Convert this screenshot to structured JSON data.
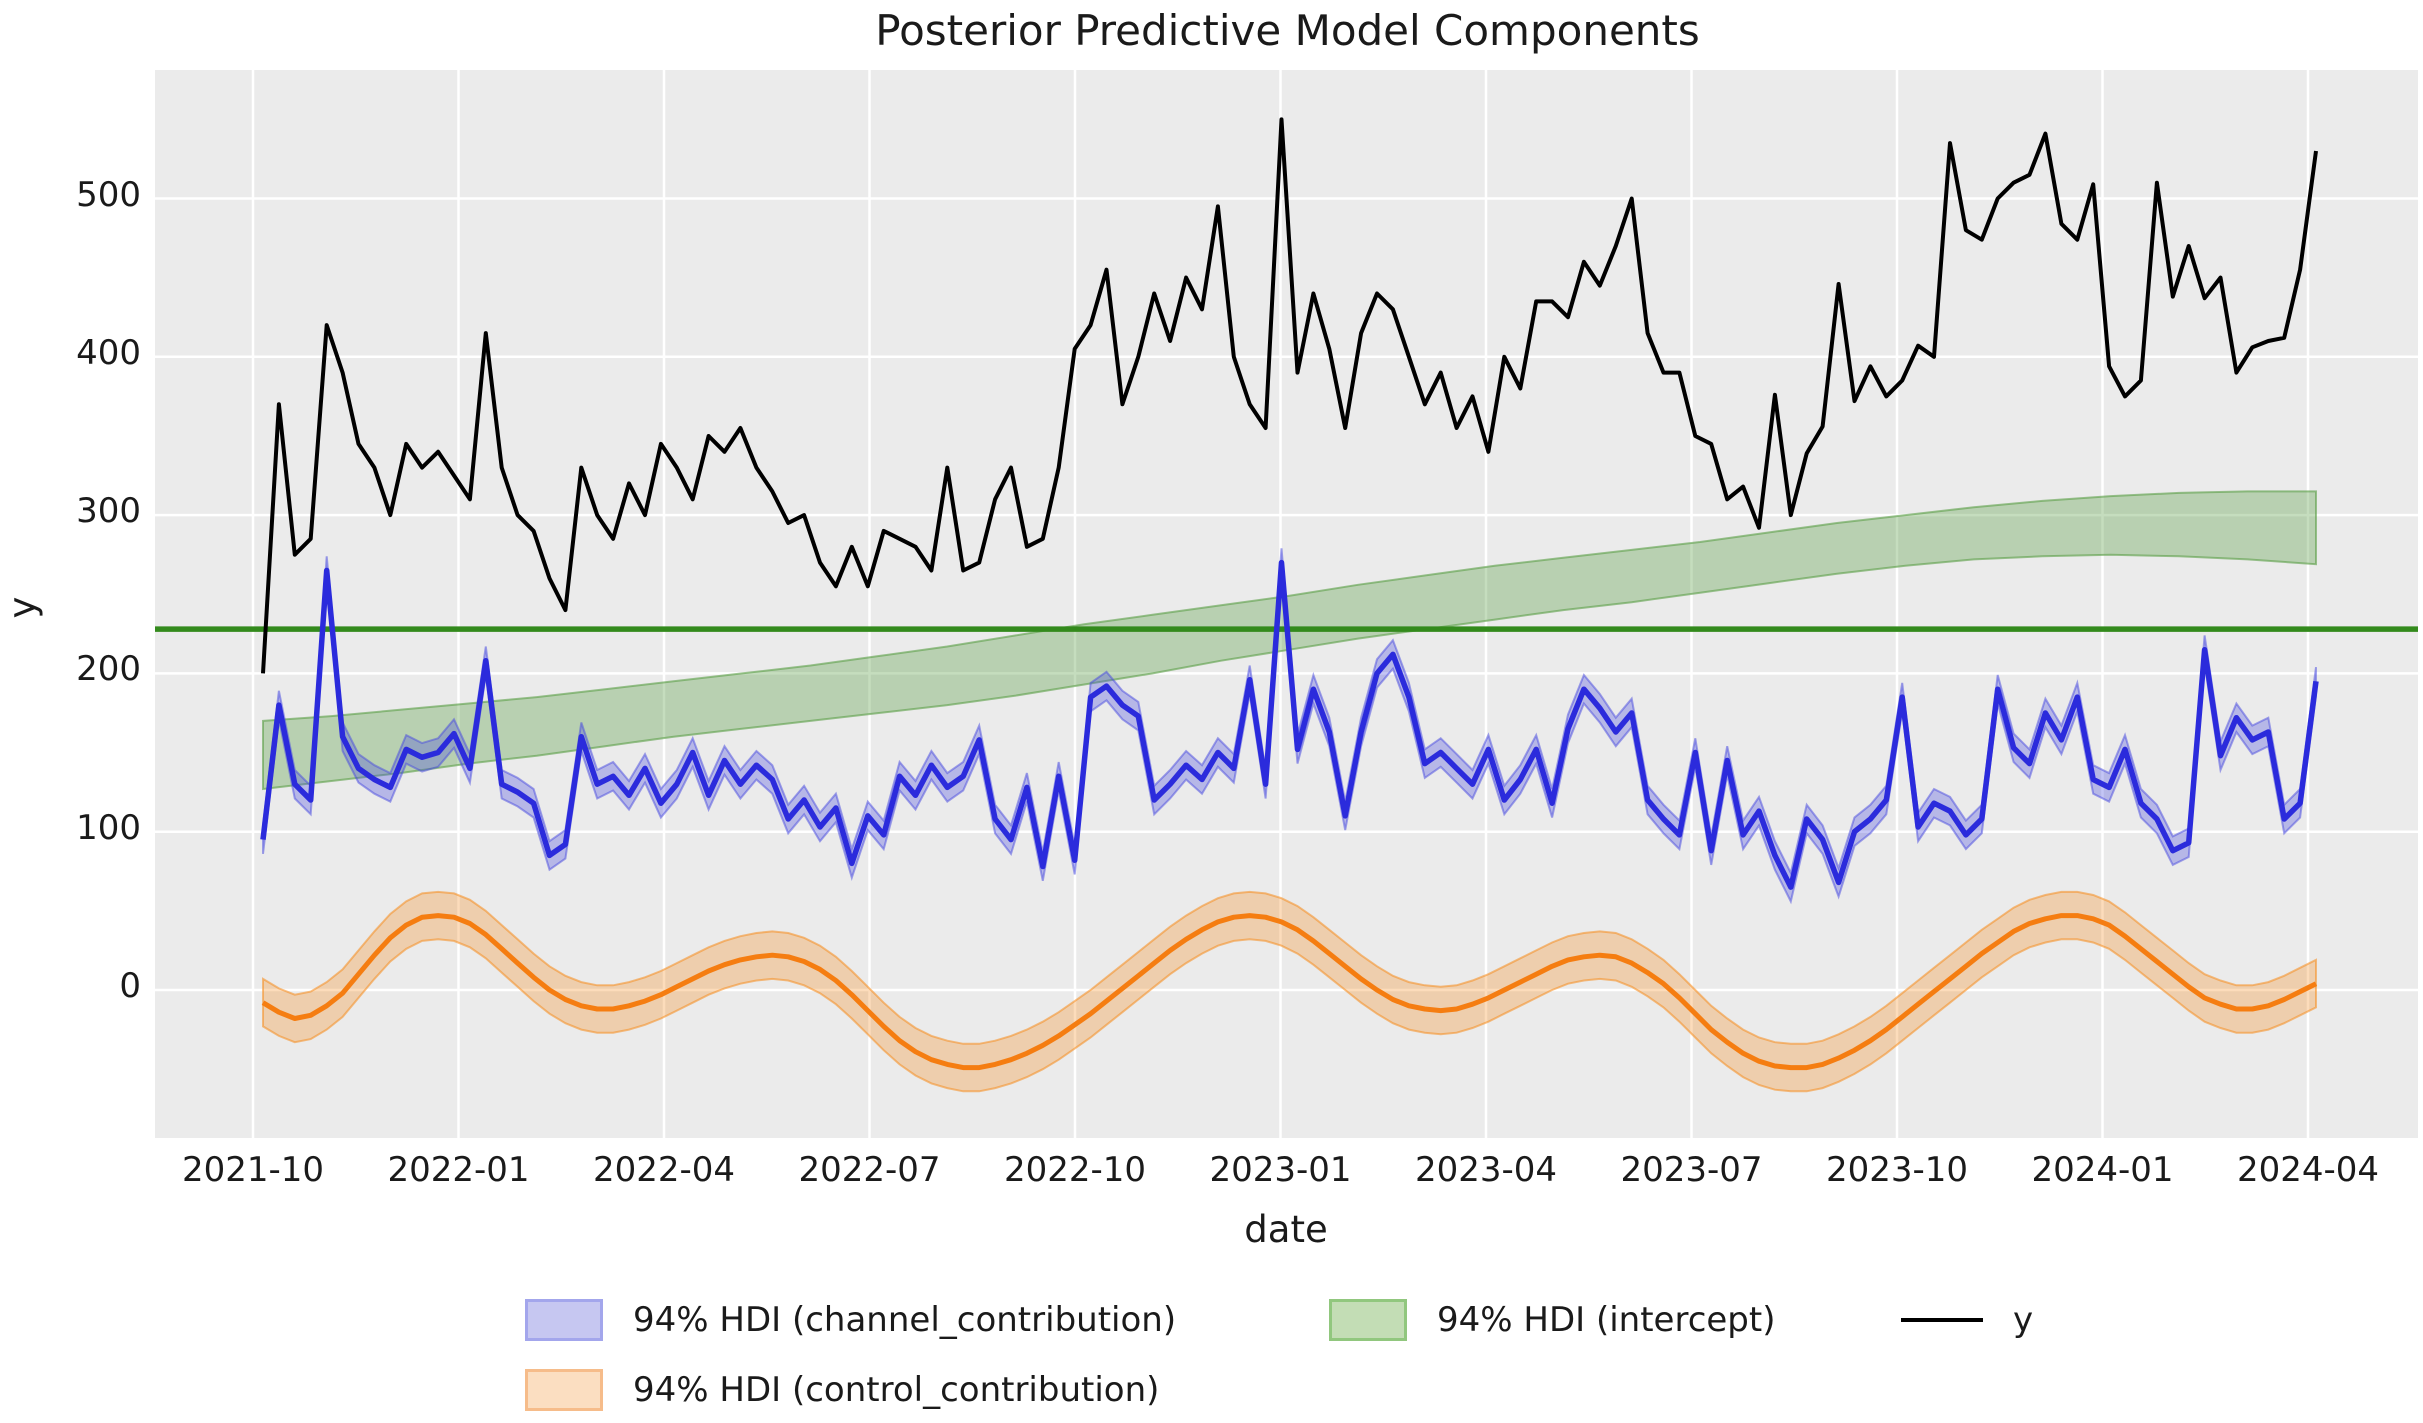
{
  "title": "Posterior Predictive Model Components",
  "axes": {
    "xlabel": "date",
    "ylabel": "y",
    "x_ticks": [
      "2021-10",
      "2022-01",
      "2022-04",
      "2022-07",
      "2022-10",
      "2023-01",
      "2023-04",
      "2023-07",
      "2023-10",
      "2024-01",
      "2024-04"
    ],
    "y_ticks": [
      0,
      100,
      200,
      300,
      400,
      500
    ],
    "ylim": [
      -93,
      581
    ],
    "grid": "white on light-gray panel"
  },
  "legend": {
    "items": [
      {
        "label": "94% HDI (channel_contribution)",
        "type": "patch",
        "fill": "#c6c7f1",
        "edge": "#9fa3e8"
      },
      {
        "label": "94% HDI (intercept)",
        "type": "patch",
        "fill": "#c3ddb5",
        "edge": "#91c77e"
      },
      {
        "label": "y",
        "type": "line",
        "color": "#000000"
      },
      {
        "label": "94% HDI (control_contribution)",
        "type": "patch",
        "fill": "#fbdec1",
        "edge": "#f6bc8a"
      }
    ]
  },
  "colors": {
    "panel_bg": "#ebebeb",
    "grid": "#ffffff",
    "y_line": "#000000",
    "channel_line": "#2b2bdc",
    "channel_band_fill": "rgba(72,74,223,0.32)",
    "channel_band_edge": "rgba(72,74,223,0.50)",
    "control_line": "#f57d11",
    "control_band_fill": "rgba(246,140,30,0.30)",
    "control_band_edge": "rgba(246,140,30,0.55)",
    "intercept_band_fill": "rgba(90,158,70,0.35)",
    "intercept_band_edge": "rgba(90,158,70,0.60)",
    "intercept_line": "#338a1c",
    "text": "#1a1a1a"
  },
  "chart_data": {
    "type": "line",
    "title": "Posterior Predictive Model Components",
    "xlabel": "date",
    "ylabel": "y",
    "x_range": [
      "2021-10",
      "2024-04"
    ],
    "cadence": "weekly",
    "hdi_level": "94%",
    "legend_position": "below, two rows",
    "series": {
      "y": {
        "name": "y",
        "values": [
          200,
          370,
          275,
          285,
          420,
          390,
          345,
          330,
          300,
          345,
          330,
          340,
          325,
          310,
          415,
          330,
          300,
          290,
          260,
          240,
          330,
          300,
          285,
          320,
          300,
          345,
          330,
          310,
          350,
          340,
          355,
          330,
          315,
          295,
          300,
          270,
          255,
          280,
          255,
          290,
          285,
          280,
          265,
          330,
          265,
          270,
          310,
          330,
          280,
          285,
          330,
          405,
          420,
          455,
          370,
          400,
          440,
          410,
          450,
          430,
          495,
          400,
          370,
          355,
          550,
          390,
          440,
          405,
          355,
          415,
          440,
          430,
          400,
          370,
          390,
          355,
          375,
          340,
          400,
          380,
          435,
          435,
          425,
          460,
          445,
          470,
          500,
          415,
          390,
          390,
          350,
          345,
          310,
          318,
          292,
          376,
          300,
          339,
          356,
          446,
          372,
          394,
          375,
          385,
          407,
          400,
          535,
          480,
          474,
          500,
          510,
          515,
          541,
          484,
          474,
          509,
          394,
          375,
          385,
          510,
          438,
          470,
          437,
          450,
          390,
          406,
          410,
          412,
          455,
          530
        ]
      },
      "channel_contribution": {
        "name": "94% HDI (channel_contribution)",
        "mean": [
          95,
          180,
          130,
          120,
          265,
          160,
          140,
          133,
          128,
          152,
          147,
          150,
          162,
          140,
          208,
          130,
          125,
          118,
          85,
          92,
          160,
          130,
          135,
          123,
          140,
          118,
          130,
          150,
          123,
          145,
          130,
          142,
          133,
          108,
          120,
          103,
          115,
          80,
          110,
          98,
          135,
          123,
          142,
          128,
          135,
          158,
          108,
          95,
          128,
          78,
          135,
          82,
          185,
          192,
          180,
          173,
          120,
          130,
          142,
          133,
          150,
          140,
          196,
          130,
          270,
          152,
          190,
          163,
          110,
          163,
          200,
          212,
          185,
          143,
          150,
          140,
          130,
          152,
          120,
          133,
          152,
          118,
          165,
          190,
          178,
          163,
          175,
          120,
          108,
          98,
          150,
          88,
          145,
          98,
          113,
          85,
          65,
          108,
          95,
          68,
          100,
          108,
          120,
          185,
          103,
          118,
          113,
          98,
          108,
          190,
          153,
          143,
          175,
          158,
          185,
          133,
          128,
          152,
          118,
          108,
          88,
          93,
          215,
          148,
          172,
          158,
          163,
          108,
          118,
          195
        ],
        "hdi_halfwidth": 9
      },
      "control_contribution": {
        "name": "94% HDI (control_contribution)",
        "mean": [
          -8,
          -14,
          -18,
          -16,
          -10,
          -2,
          10,
          22,
          33,
          41,
          46,
          47,
          46,
          42,
          35,
          26,
          17,
          8,
          0,
          -6,
          -10,
          -12,
          -12,
          -10,
          -7,
          -3,
          2,
          7,
          12,
          16,
          19,
          21,
          22,
          21,
          18,
          13,
          6,
          -3,
          -13,
          -23,
          -32,
          -39,
          -44,
          -47,
          -49,
          -49,
          -47,
          -44,
          -40,
          -35,
          -29,
          -22,
          -15,
          -7,
          1,
          9,
          17,
          25,
          32,
          38,
          43,
          46,
          47,
          46,
          43,
          38,
          31,
          23,
          15,
          7,
          0,
          -6,
          -10,
          -12,
          -13,
          -12,
          -9,
          -5,
          0,
          5,
          10,
          15,
          19,
          21,
          22,
          21,
          17,
          11,
          4,
          -5,
          -15,
          -25,
          -33,
          -40,
          -45,
          -48,
          -49,
          -49,
          -47,
          -43,
          -38,
          -32,
          -25,
          -17,
          -9,
          -1,
          7,
          15,
          23,
          30,
          37,
          42,
          45,
          47,
          47,
          45,
          41,
          34,
          26,
          18,
          10,
          2,
          -5,
          -9,
          -12,
          -12,
          -10,
          -6,
          -1,
          4
        ],
        "hdi_halfwidth": 15
      },
      "intercept": {
        "name": "94% HDI (intercept)",
        "hdi_lo_monthly": [
          127,
          132,
          137,
          143,
          148,
          154,
          160,
          165,
          170,
          175,
          180,
          186,
          193,
          200,
          208,
          215,
          222,
          228,
          234,
          240,
          245,
          251,
          257,
          263,
          268,
          272,
          274,
          275,
          274,
          272,
          269
        ],
        "hdi_hi_monthly": [
          170,
          173,
          177,
          181,
          185,
          190,
          195,
          200,
          205,
          211,
          217,
          224,
          231,
          237,
          243,
          249,
          256,
          262,
          268,
          273,
          278,
          283,
          289,
          295,
          300,
          305,
          309,
          312,
          314,
          315,
          315
        ],
        "mean_line_value": 228
      }
    }
  }
}
